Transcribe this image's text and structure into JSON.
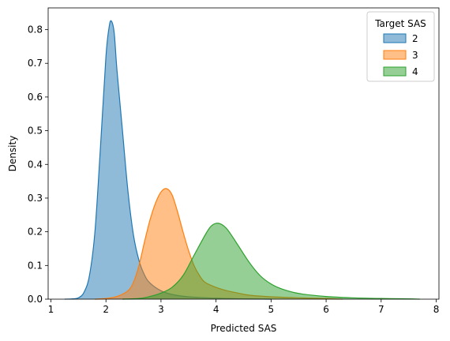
{
  "chart_data": {
    "type": "area",
    "subtype": "kde",
    "title": "",
    "xlabel": "Predicted SAS",
    "ylabel": "Density",
    "xlim": [
      0.95,
      8.05
    ],
    "ylim": [
      0,
      0.8645
    ],
    "xticks": [
      1,
      2,
      3,
      4,
      5,
      6,
      7,
      8
    ],
    "yticks": [
      0.0,
      0.1,
      0.2,
      0.3,
      0.4,
      0.5,
      0.6,
      0.7,
      0.8
    ],
    "grid": false,
    "legend": {
      "title": "Target SAS",
      "position": "upper-right"
    },
    "series": [
      {
        "name": "2",
        "color": "#1f77b4",
        "points": [
          [
            1.25,
            0.0
          ],
          [
            1.4,
            0.001
          ],
          [
            1.5,
            0.004
          ],
          [
            1.6,
            0.02
          ],
          [
            1.7,
            0.07
          ],
          [
            1.8,
            0.2
          ],
          [
            1.9,
            0.45
          ],
          [
            2.0,
            0.72
          ],
          [
            2.06,
            0.81
          ],
          [
            2.1,
            0.825
          ],
          [
            2.15,
            0.79
          ],
          [
            2.2,
            0.68
          ],
          [
            2.3,
            0.5
          ],
          [
            2.4,
            0.32
          ],
          [
            2.5,
            0.19
          ],
          [
            2.6,
            0.115
          ],
          [
            2.7,
            0.072
          ],
          [
            2.8,
            0.048
          ],
          [
            3.0,
            0.025
          ],
          [
            3.2,
            0.014
          ],
          [
            3.5,
            0.007
          ],
          [
            4.0,
            0.003
          ],
          [
            4.5,
            0.001
          ],
          [
            5.0,
            0.0
          ]
        ]
      },
      {
        "name": "3",
        "color": "#ff7f0e",
        "points": [
          [
            1.8,
            0.0
          ],
          [
            2.0,
            0.002
          ],
          [
            2.2,
            0.008
          ],
          [
            2.4,
            0.025
          ],
          [
            2.5,
            0.05
          ],
          [
            2.6,
            0.1
          ],
          [
            2.7,
            0.17
          ],
          [
            2.8,
            0.235
          ],
          [
            2.9,
            0.285
          ],
          [
            3.0,
            0.318
          ],
          [
            3.1,
            0.328
          ],
          [
            3.2,
            0.31
          ],
          [
            3.3,
            0.26
          ],
          [
            3.4,
            0.2
          ],
          [
            3.5,
            0.145
          ],
          [
            3.6,
            0.1
          ],
          [
            3.7,
            0.07
          ],
          [
            3.8,
            0.05
          ],
          [
            4.0,
            0.035
          ],
          [
            4.2,
            0.025
          ],
          [
            4.4,
            0.018
          ],
          [
            4.6,
            0.012
          ],
          [
            5.0,
            0.007
          ],
          [
            5.5,
            0.004
          ],
          [
            6.0,
            0.002
          ],
          [
            6.3,
            0.0
          ]
        ]
      },
      {
        "name": "4",
        "color": "#2ca02c",
        "points": [
          [
            2.3,
            0.0
          ],
          [
            2.6,
            0.002
          ],
          [
            2.8,
            0.008
          ],
          [
            3.0,
            0.018
          ],
          [
            3.2,
            0.035
          ],
          [
            3.4,
            0.07
          ],
          [
            3.6,
            0.13
          ],
          [
            3.8,
            0.19
          ],
          [
            3.9,
            0.215
          ],
          [
            4.0,
            0.225
          ],
          [
            4.1,
            0.222
          ],
          [
            4.2,
            0.208
          ],
          [
            4.3,
            0.185
          ],
          [
            4.4,
            0.16
          ],
          [
            4.6,
            0.11
          ],
          [
            4.8,
            0.07
          ],
          [
            5.0,
            0.045
          ],
          [
            5.2,
            0.03
          ],
          [
            5.5,
            0.017
          ],
          [
            6.0,
            0.008
          ],
          [
            6.5,
            0.004
          ],
          [
            7.0,
            0.002
          ],
          [
            7.5,
            0.001
          ],
          [
            7.7,
            0.0
          ]
        ]
      }
    ]
  }
}
